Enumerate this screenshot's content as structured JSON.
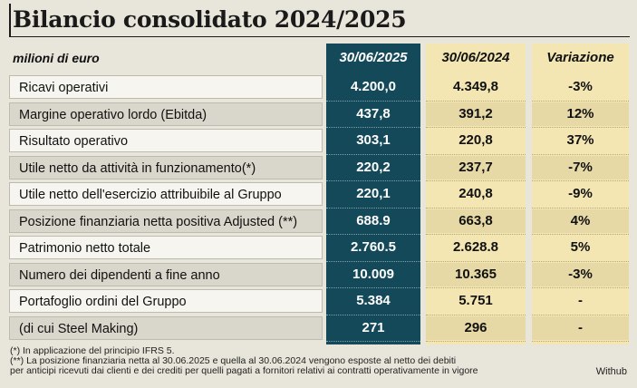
{
  "title": "Bilancio consolidato 2024/2025",
  "header": {
    "label": "milioni di euro",
    "col_2025": "30/06/2025",
    "col_2024": "30/06/2024",
    "col_var": "Variazione"
  },
  "rows": [
    {
      "label": "Ricavi operativi",
      "v2025": "4.200,0",
      "v2024": "4.349,8",
      "var": "-3%"
    },
    {
      "label": "Margine operativo lordo (Ebitda)",
      "v2025": "437,8",
      "v2024": "391,2",
      "var": "12%"
    },
    {
      "label": "Risultato operativo",
      "v2025": "303,1",
      "v2024": "220,8",
      "var": "37%"
    },
    {
      "label": "Utile netto da attività in funzionamento(*)",
      "v2025": "220,2",
      "v2024": "237,7",
      "var": "-7%"
    },
    {
      "label": "Utile netto dell'esercizio attribuibile al Gruppo",
      "v2025": "220,1",
      "v2024": "240,8",
      "var": "-9%"
    },
    {
      "label": "Posizione finanziaria netta positiva Adjusted (**)",
      "v2025": "688.9",
      "v2024": "663,8",
      "var": "4%"
    },
    {
      "label": "Patrimonio netto totale",
      "v2025": "2.760.5",
      "v2024": "2.628.8",
      "var": "5%"
    },
    {
      "label": "Numero dei dipendenti a fine anno",
      "v2025": "10.009",
      "v2024": "10.365",
      "var": "-3%"
    },
    {
      "label": "Portafoglio ordini del Gruppo",
      "v2025": "5.384",
      "v2024": "5.751",
      "var": "-"
    },
    {
      "label": "(di cui Steel Making)",
      "v2025": "271",
      "v2024": "296",
      "var": "-"
    }
  ],
  "notes": [
    "(*) In applicazione del principio IFRS 5.",
    "(**) La posizione finanziaria netta al 30.06.2025 e quella al 30.06.2024 vengono esposte al netto dei debiti",
    "per anticipi ricevuti dai clienti e dei crediti per quelli pagati a fornitori relativi ai contratti operativamente in vigore"
  ],
  "credit": "Withub",
  "colors": {
    "col_2025": "#14495a",
    "col_other": "#f3e6b3",
    "background": "#e8e6da"
  }
}
